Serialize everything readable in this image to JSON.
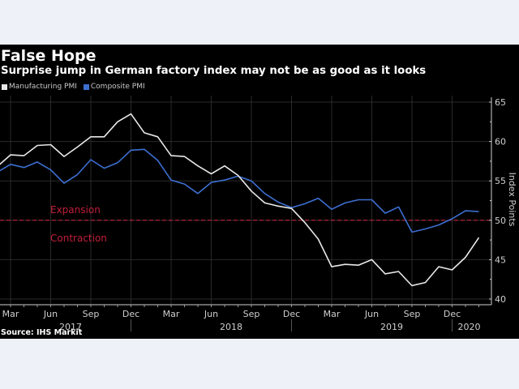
{
  "header": {
    "title": "False Hope",
    "subtitle": "Surprise jump in German factory index may not be as good as it looks"
  },
  "source": "Source: IHS Markit",
  "chart_data": {
    "type": "line",
    "title": "False Hope",
    "subtitle": "Surprise jump in German factory index may not be as good as it looks",
    "xlabel": "",
    "ylabel": "Index Points",
    "ylim": [
      40,
      65
    ],
    "yticks": [
      40,
      45,
      50,
      55,
      60,
      65
    ],
    "y_axis_side": "right",
    "grid": true,
    "legend_position": "top-left",
    "x": [
      "2017-02",
      "2017-03",
      "2017-04",
      "2017-05",
      "2017-06",
      "2017-07",
      "2017-08",
      "2017-09",
      "2017-10",
      "2017-11",
      "2017-12",
      "2018-01",
      "2018-02",
      "2018-03",
      "2018-04",
      "2018-05",
      "2018-06",
      "2018-07",
      "2018-08",
      "2018-09",
      "2018-10",
      "2018-11",
      "2018-12",
      "2019-01",
      "2019-02",
      "2019-03",
      "2019-04",
      "2019-05",
      "2019-06",
      "2019-07",
      "2019-08",
      "2019-09",
      "2019-10",
      "2019-11",
      "2019-12",
      "2020-01",
      "2020-02"
    ],
    "xticks": [
      {
        "label": "Mar",
        "x": "2017-03"
      },
      {
        "label": "Jun",
        "x": "2017-06"
      },
      {
        "label": "Sep",
        "x": "2017-09"
      },
      {
        "label": "Dec",
        "x": "2017-12"
      },
      {
        "label": "Mar",
        "x": "2018-03"
      },
      {
        "label": "Jun",
        "x": "2018-06"
      },
      {
        "label": "Sep",
        "x": "2018-09"
      },
      {
        "label": "Dec",
        "x": "2018-12"
      },
      {
        "label": "Mar",
        "x": "2019-03"
      },
      {
        "label": "Jun",
        "x": "2019-06"
      },
      {
        "label": "Sep",
        "x": "2019-09"
      },
      {
        "label": "Dec",
        "x": "2019-12"
      }
    ],
    "year_labels": [
      {
        "label": "2017",
        "x": "2017-07"
      },
      {
        "label": "2018",
        "x": "2018-07"
      },
      {
        "label": "2019",
        "x": "2019-07"
      },
      {
        "label": "2020",
        "x": "2020-02"
      }
    ],
    "series": [
      {
        "name": "Manufacturing PMI",
        "color": "#e8e8e8",
        "values": [
          56.8,
          58.3,
          58.2,
          59.5,
          59.6,
          58.1,
          59.3,
          60.6,
          60.6,
          62.5,
          63.5,
          61.1,
          60.6,
          58.2,
          58.1,
          56.9,
          55.9,
          56.9,
          55.7,
          53.7,
          52.2,
          51.8,
          51.5,
          49.7,
          47.6,
          44.1,
          44.4,
          44.3,
          45.0,
          43.2,
          43.5,
          41.7,
          42.1,
          44.1,
          43.7,
          45.3,
          47.8
        ]
      },
      {
        "name": "Composite PMI",
        "color": "#3d6fd1",
        "values": [
          56.1,
          57.1,
          56.7,
          57.4,
          56.4,
          54.7,
          55.8,
          57.7,
          56.6,
          57.3,
          58.9,
          59.0,
          57.6,
          55.1,
          54.6,
          53.4,
          54.8,
          55.1,
          55.6,
          55.0,
          53.4,
          52.3,
          51.6,
          52.1,
          52.8,
          51.4,
          52.2,
          52.6,
          52.6,
          50.9,
          51.7,
          48.5,
          48.9,
          49.4,
          50.2,
          51.2,
          51.1
        ]
      }
    ],
    "reference_line": {
      "value": 50,
      "color": "#c21f3a",
      "style": "dashed"
    },
    "annotations": [
      {
        "text": "Expansion",
        "position": "above-reference-line",
        "color": "#c21f3a"
      },
      {
        "text": "Contraction",
        "position": "below-reference-line",
        "color": "#c21f3a"
      }
    ]
  }
}
